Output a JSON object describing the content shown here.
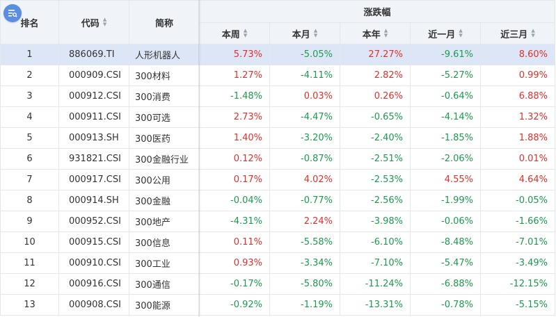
{
  "header": {
    "rank": "排名",
    "code": "代码",
    "name": "简称",
    "group": "涨跌幅",
    "week": "本周",
    "month": "本月",
    "year": "本年",
    "last_month": "近一月",
    "last_3m": "近三月"
  },
  "rows": [
    {
      "rank": "1",
      "code": "886069.TI",
      "name": "人形机器人",
      "week": "5.73%",
      "month": "-5.05%",
      "year": "27.27%",
      "m1": "-9.61%",
      "m3": "8.60%"
    },
    {
      "rank": "2",
      "code": "000909.CSI",
      "name": "300材料",
      "week": "1.27%",
      "month": "-4.11%",
      "year": "2.82%",
      "m1": "-5.27%",
      "m3": "0.99%"
    },
    {
      "rank": "3",
      "code": "000912.CSI",
      "name": "300消费",
      "week": "-1.48%",
      "month": "0.03%",
      "year": "0.26%",
      "m1": "-0.64%",
      "m3": "6.88%"
    },
    {
      "rank": "4",
      "code": "000911.CSI",
      "name": "300可选",
      "week": "2.73%",
      "month": "-4.47%",
      "year": "-0.65%",
      "m1": "-4.14%",
      "m3": "1.32%"
    },
    {
      "rank": "5",
      "code": "000913.SH",
      "name": "300医药",
      "week": "1.40%",
      "month": "-3.20%",
      "year": "-2.40%",
      "m1": "-1.85%",
      "m3": "1.88%"
    },
    {
      "rank": "6",
      "code": "931821.CSI",
      "name": "300金融行业",
      "week": "0.12%",
      "month": "-0.87%",
      "year": "-2.51%",
      "m1": "-2.06%",
      "m3": "0.01%"
    },
    {
      "rank": "7",
      "code": "000917.CSI",
      "name": "300公用",
      "week": "0.17%",
      "month": "4.02%",
      "year": "-2.53%",
      "m1": "4.55%",
      "m3": "4.64%"
    },
    {
      "rank": "8",
      "code": "000914.SH",
      "name": "300金融",
      "week": "-0.04%",
      "month": "-0.77%",
      "year": "-2.56%",
      "m1": "-1.99%",
      "m3": "-0.05%"
    },
    {
      "rank": "9",
      "code": "000952.CSI",
      "name": "300地产",
      "week": "-4.31%",
      "month": "2.24%",
      "year": "-3.98%",
      "m1": "-0.06%",
      "m3": "-1.66%"
    },
    {
      "rank": "10",
      "code": "000915.CSI",
      "name": "300信息",
      "week": "0.11%",
      "month": "-5.58%",
      "year": "-6.10%",
      "m1": "-8.48%",
      "m3": "-7.01%"
    },
    {
      "rank": "11",
      "code": "000910.CSI",
      "name": "300工业",
      "week": "0.93%",
      "month": "-3.34%",
      "year": "-7.10%",
      "m1": "-5.47%",
      "m3": "-3.49%"
    },
    {
      "rank": "12",
      "code": "000916.CSI",
      "name": "300通信",
      "week": "-0.17%",
      "month": "-5.80%",
      "year": "-11.24%",
      "m1": "-6.88%",
      "m3": "-12.15%"
    },
    {
      "rank": "13",
      "code": "000908.CSI",
      "name": "300能源",
      "week": "-0.92%",
      "month": "-1.19%",
      "year": "-13.31%",
      "m1": "-0.78%",
      "m3": "-5.15%"
    }
  ],
  "colors": {
    "up": "#e0312b",
    "down": "#1d9a4e",
    "selected_row": "#dde6f7",
    "menu_button": "#5b8de0"
  },
  "icons": {
    "menu": "column-settings-icon",
    "sort": "sort-arrows-icon"
  }
}
